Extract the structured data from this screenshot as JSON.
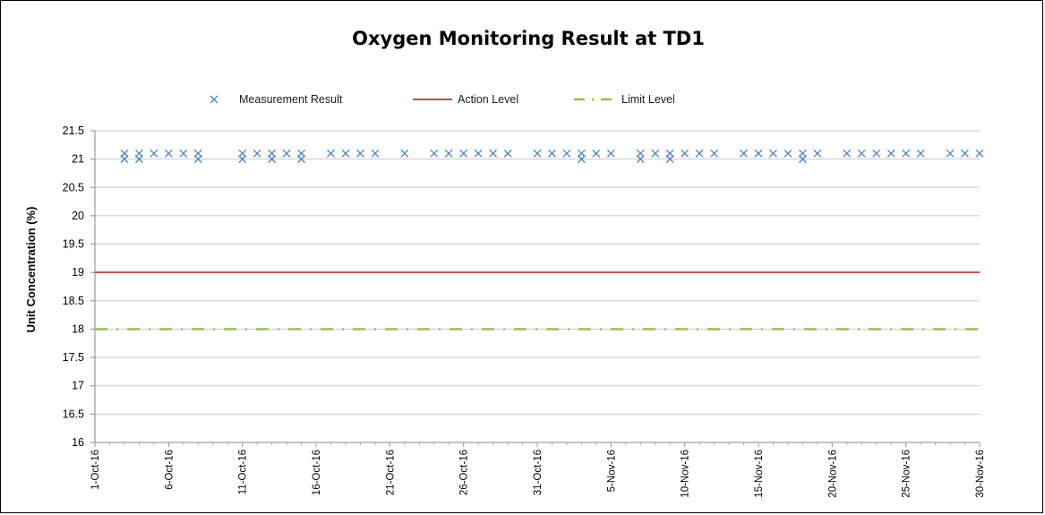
{
  "chart_data": {
    "type": "scatter",
    "title": "Oxygen Monitoring Result at TD1",
    "xlabel": "",
    "ylabel": "Unit Concentration (%)",
    "ylim": [
      16,
      21.5
    ],
    "ystep": 0.5,
    "y_tick_labels": [
      "16",
      "16.5",
      "17",
      "17.5",
      "18",
      "18.5",
      "19",
      "19.5",
      "20",
      "20.5",
      "21",
      "21.5"
    ],
    "xlim": [
      "2016-10-01",
      "2016-11-30"
    ],
    "x_tick_labels": [
      "1-Oct-16",
      "6-Oct-16",
      "11-Oct-16",
      "16-Oct-16",
      "21-Oct-16",
      "26-Oct-16",
      "31-Oct-16",
      "5-Nov-16",
      "10-Nov-16",
      "15-Nov-16",
      "20-Nov-16",
      "25-Nov-16",
      "30-Nov-16"
    ],
    "grid": true,
    "legend_position": "top",
    "series": [
      {
        "name": "Measurement Result",
        "kind": "scatter",
        "marker": "x",
        "color": "#4f81bd",
        "points": [
          {
            "x": "2016-10-03",
            "y": 21.1
          },
          {
            "x": "2016-10-03",
            "y": 21.0
          },
          {
            "x": "2016-10-04",
            "y": 21.1
          },
          {
            "x": "2016-10-04",
            "y": 21.0
          },
          {
            "x": "2016-10-05",
            "y": 21.1
          },
          {
            "x": "2016-10-06",
            "y": 21.1
          },
          {
            "x": "2016-10-07",
            "y": 21.1
          },
          {
            "x": "2016-10-08",
            "y": 21.1
          },
          {
            "x": "2016-10-08",
            "y": 21.0
          },
          {
            "x": "2016-10-11",
            "y": 21.1
          },
          {
            "x": "2016-10-11",
            "y": 21.0
          },
          {
            "x": "2016-10-12",
            "y": 21.1
          },
          {
            "x": "2016-10-13",
            "y": 21.1
          },
          {
            "x": "2016-10-13",
            "y": 21.0
          },
          {
            "x": "2016-10-14",
            "y": 21.1
          },
          {
            "x": "2016-10-15",
            "y": 21.1
          },
          {
            "x": "2016-10-15",
            "y": 21.0
          },
          {
            "x": "2016-10-17",
            "y": 21.1
          },
          {
            "x": "2016-10-18",
            "y": 21.1
          },
          {
            "x": "2016-10-19",
            "y": 21.1
          },
          {
            "x": "2016-10-20",
            "y": 21.1
          },
          {
            "x": "2016-10-22",
            "y": 21.1
          },
          {
            "x": "2016-10-24",
            "y": 21.1
          },
          {
            "x": "2016-10-25",
            "y": 21.1
          },
          {
            "x": "2016-10-26",
            "y": 21.1
          },
          {
            "x": "2016-10-27",
            "y": 21.1
          },
          {
            "x": "2016-10-28",
            "y": 21.1
          },
          {
            "x": "2016-10-29",
            "y": 21.1
          },
          {
            "x": "2016-10-31",
            "y": 21.1
          },
          {
            "x": "2016-11-01",
            "y": 21.1
          },
          {
            "x": "2016-11-02",
            "y": 21.1
          },
          {
            "x": "2016-11-03",
            "y": 21.1
          },
          {
            "x": "2016-11-03",
            "y": 21.0
          },
          {
            "x": "2016-11-04",
            "y": 21.1
          },
          {
            "x": "2016-11-05",
            "y": 21.1
          },
          {
            "x": "2016-11-07",
            "y": 21.1
          },
          {
            "x": "2016-11-07",
            "y": 21.0
          },
          {
            "x": "2016-11-08",
            "y": 21.1
          },
          {
            "x": "2016-11-09",
            "y": 21.1
          },
          {
            "x": "2016-11-09",
            "y": 21.0
          },
          {
            "x": "2016-11-10",
            "y": 21.1
          },
          {
            "x": "2016-11-11",
            "y": 21.1
          },
          {
            "x": "2016-11-12",
            "y": 21.1
          },
          {
            "x": "2016-11-14",
            "y": 21.1
          },
          {
            "x": "2016-11-15",
            "y": 21.1
          },
          {
            "x": "2016-11-16",
            "y": 21.1
          },
          {
            "x": "2016-11-17",
            "y": 21.1
          },
          {
            "x": "2016-11-18",
            "y": 21.1
          },
          {
            "x": "2016-11-18",
            "y": 21.0
          },
          {
            "x": "2016-11-19",
            "y": 21.1
          },
          {
            "x": "2016-11-21",
            "y": 21.1
          },
          {
            "x": "2016-11-22",
            "y": 21.1
          },
          {
            "x": "2016-11-23",
            "y": 21.1
          },
          {
            "x": "2016-11-24",
            "y": 21.1
          },
          {
            "x": "2016-11-25",
            "y": 21.1
          },
          {
            "x": "2016-11-26",
            "y": 21.1
          },
          {
            "x": "2016-11-28",
            "y": 21.1
          },
          {
            "x": "2016-11-29",
            "y": 21.1
          },
          {
            "x": "2016-11-30",
            "y": 21.1
          }
        ]
      },
      {
        "name": "Action Level",
        "kind": "line",
        "line_style": "solid",
        "color": "#c0504d",
        "x": [
          "2016-10-01",
          "2016-11-30"
        ],
        "y": [
          19,
          19
        ]
      },
      {
        "name": "Limit Level",
        "kind": "line",
        "line_style": "dash-dot",
        "color": "#9bbb59",
        "x": [
          "2016-10-01",
          "2016-11-30"
        ],
        "y": [
          18,
          18
        ]
      }
    ]
  }
}
